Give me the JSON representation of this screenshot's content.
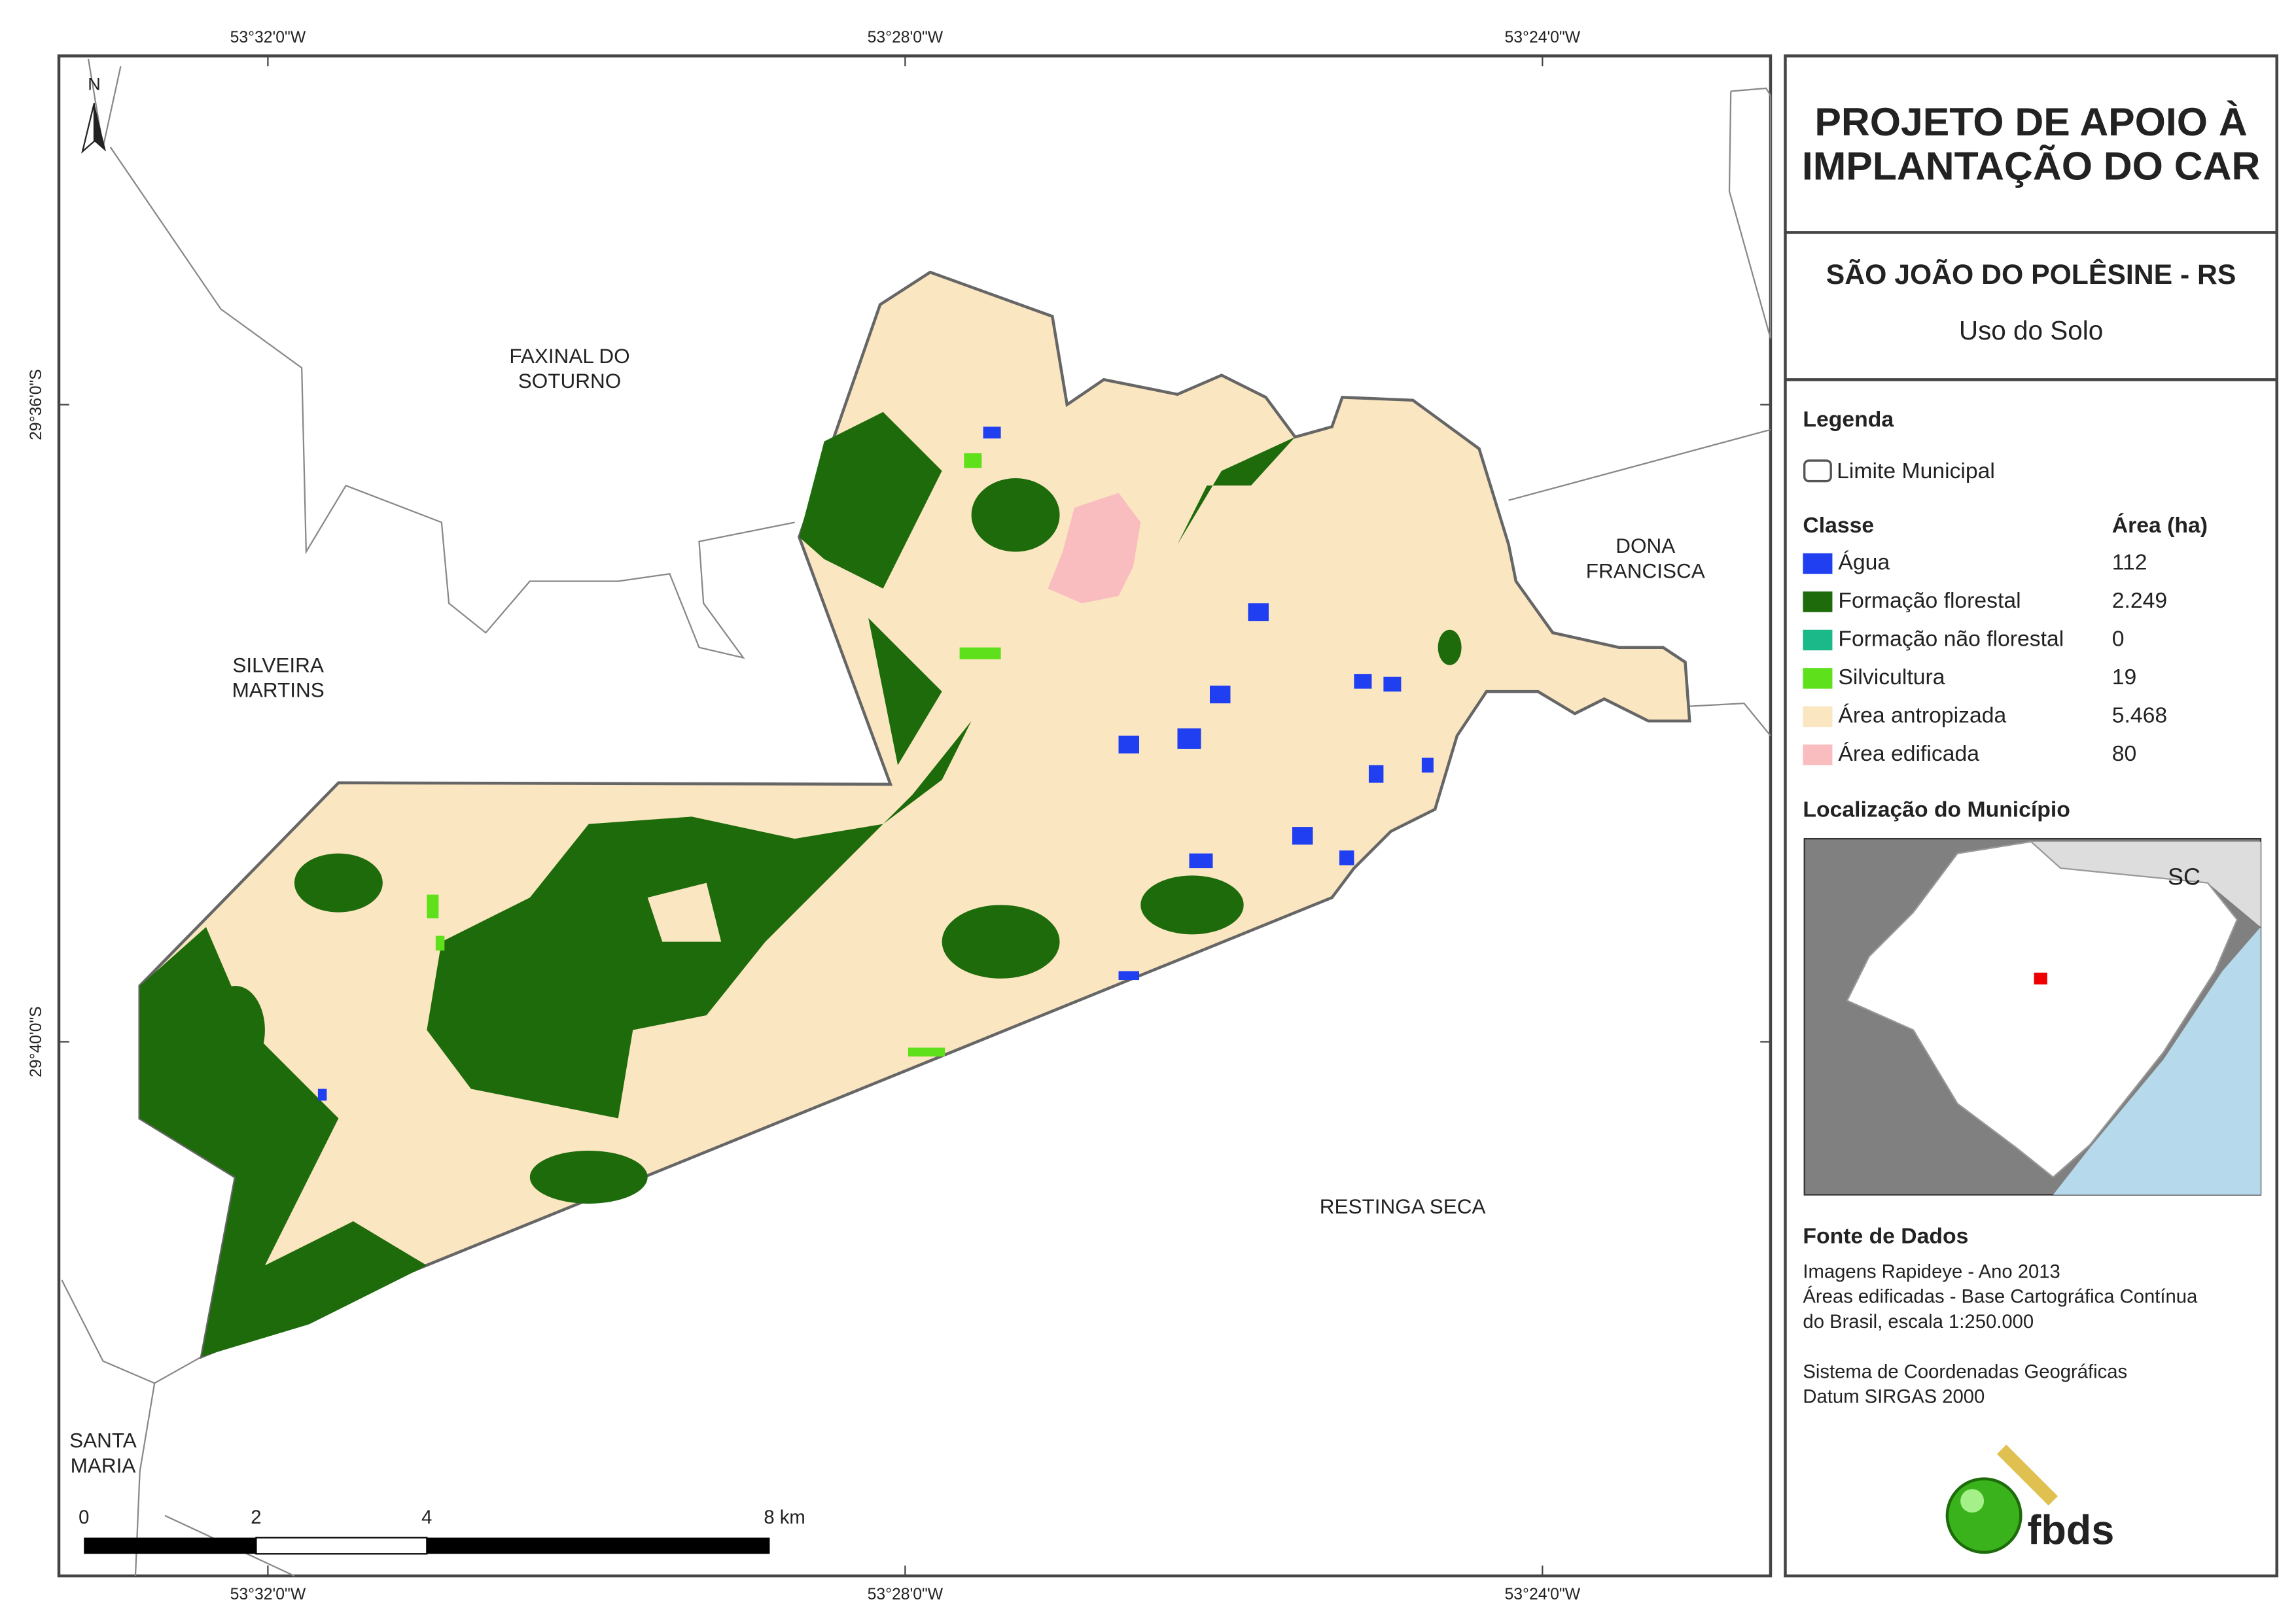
{
  "map": {
    "graticule": {
      "longitude": [
        "53°32'0\"W",
        "53°28'0\"W",
        "53°24'0\"W"
      ],
      "latitude": [
        "29°36'0\"S",
        "29°40'0\"S"
      ]
    },
    "north": "N",
    "places": [
      {
        "lines": [
          "FAXINAL DO",
          "SOTURNO"
        ]
      },
      {
        "lines": [
          "DONA",
          "FRANCISCA"
        ]
      },
      {
        "lines": [
          "SILVEIRA",
          "MARTINS"
        ]
      },
      {
        "lines": [
          "RESTINGA SECA"
        ]
      },
      {
        "lines": [
          "SANTA",
          "MARIA"
        ]
      }
    ],
    "scale": {
      "ticks": [
        "0",
        "2",
        "4",
        "8 km"
      ]
    },
    "inset_label": "SC"
  },
  "panel": {
    "title": [
      "PROJETO DE APOIO À",
      "IMPLANTAÇÃO DO CAR"
    ],
    "municipality": "SÃO JOÃO DO POLÊSINE - RS",
    "subtitle": "Uso do Solo",
    "legend": {
      "heading": "Legenda",
      "boundary": "Limite Municipal",
      "class_header": "Classe",
      "area_header": "Área (ha)",
      "classes": [
        {
          "name": "Água",
          "area": "112",
          "color": "#1f3ff0"
        },
        {
          "name": "Formação florestal",
          "area": "2.249",
          "color": "#1e6b0c"
        },
        {
          "name": "Formação não florestal",
          "area": "0",
          "color": "#1bb88a"
        },
        {
          "name": "Silvicultura",
          "area": "19",
          "color": "#5ee01a"
        },
        {
          "name": "Área antropizada",
          "area": "5.468",
          "color": "#fbe6c2"
        },
        {
          "name": "Área edificada",
          "area": "80",
          "color": "#f9bcbf"
        }
      ]
    },
    "location": "Localização do Município",
    "sources": {
      "heading": "Fonte de Dados",
      "lines": [
        "Imagens Rapideye - Ano 2013",
        "Áreas edificadas - Base Cartográfica Contínua",
        "do Brasil, escala 1:250.000",
        "Sistema de Coordenadas Geográficas",
        "Datum SIRGAS 2000"
      ]
    },
    "logo": "fbds"
  }
}
